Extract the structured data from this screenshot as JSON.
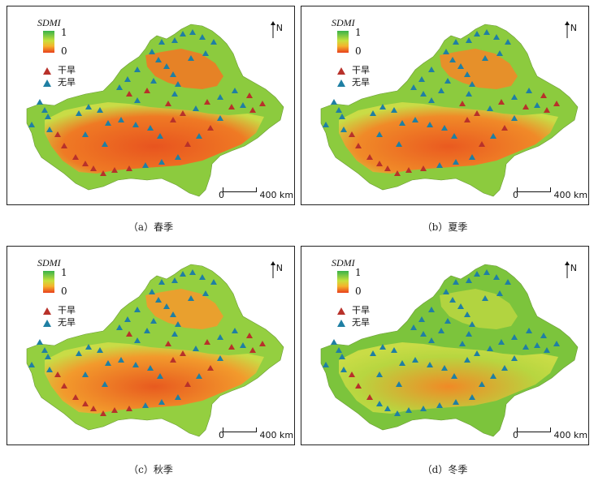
{
  "legend": {
    "title": "SDMI",
    "max_label": "1",
    "min_label": "0",
    "drought_label": "干旱",
    "no_drought_label": "无旱",
    "drought_color": "#b8312a",
    "no_drought_color": "#1f7fa3"
  },
  "north_label": "N",
  "scale": {
    "zero": "0",
    "dist": "400 km"
  },
  "panels": [
    {
      "caption": "（a）春季",
      "drought_count": 20,
      "no_drought_count": 43
    },
    {
      "caption": "（b）夏季",
      "drought_count": 18,
      "no_drought_count": 45
    },
    {
      "caption": "（c）秋季",
      "drought_count": 19,
      "no_drought_count": 44
    },
    {
      "caption": "（d）冬季",
      "drought_count": 3,
      "no_drought_count": 60
    }
  ]
}
